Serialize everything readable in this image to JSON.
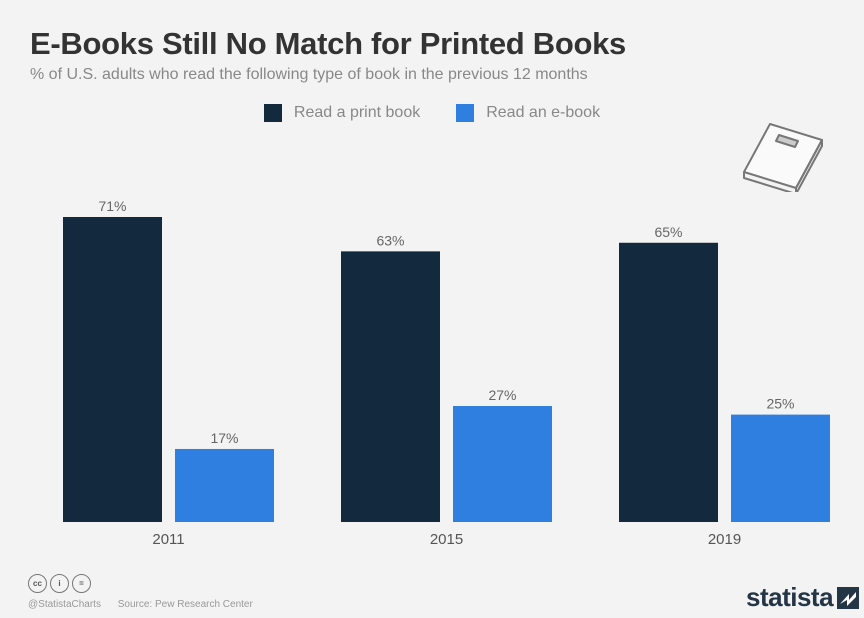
{
  "title": "E-Books Still No Match for Printed Books",
  "subtitle": "% of U.S. adults who read the following type of book in the previous 12 months",
  "colors": {
    "print": "#13293d",
    "ebook": "#2f7fe0",
    "background": "#f3f3f3"
  },
  "chart_data": {
    "type": "bar",
    "categories": [
      "2011",
      "2015",
      "2019"
    ],
    "series": [
      {
        "name": "Read a print book",
        "values": [
          71,
          63,
          65
        ],
        "labels": [
          "71%",
          "63%",
          "65%"
        ]
      },
      {
        "name": "Read an e-book",
        "values": [
          17,
          27,
          25
        ],
        "labels": [
          "17%",
          "27%",
          "25%"
        ]
      }
    ],
    "ylim": [
      0,
      71
    ],
    "grid": false,
    "legend": "top-center"
  },
  "icons": {
    "book": "book-icon",
    "cc": "creative-commons-icon",
    "info": "info-icon",
    "equals": "no-derivatives-icon",
    "brand": "statista-logo-mark"
  },
  "footer": {
    "handle": "@StatistaCharts",
    "source": "Source: Pew Research Center"
  },
  "brand": {
    "name": "statista"
  }
}
